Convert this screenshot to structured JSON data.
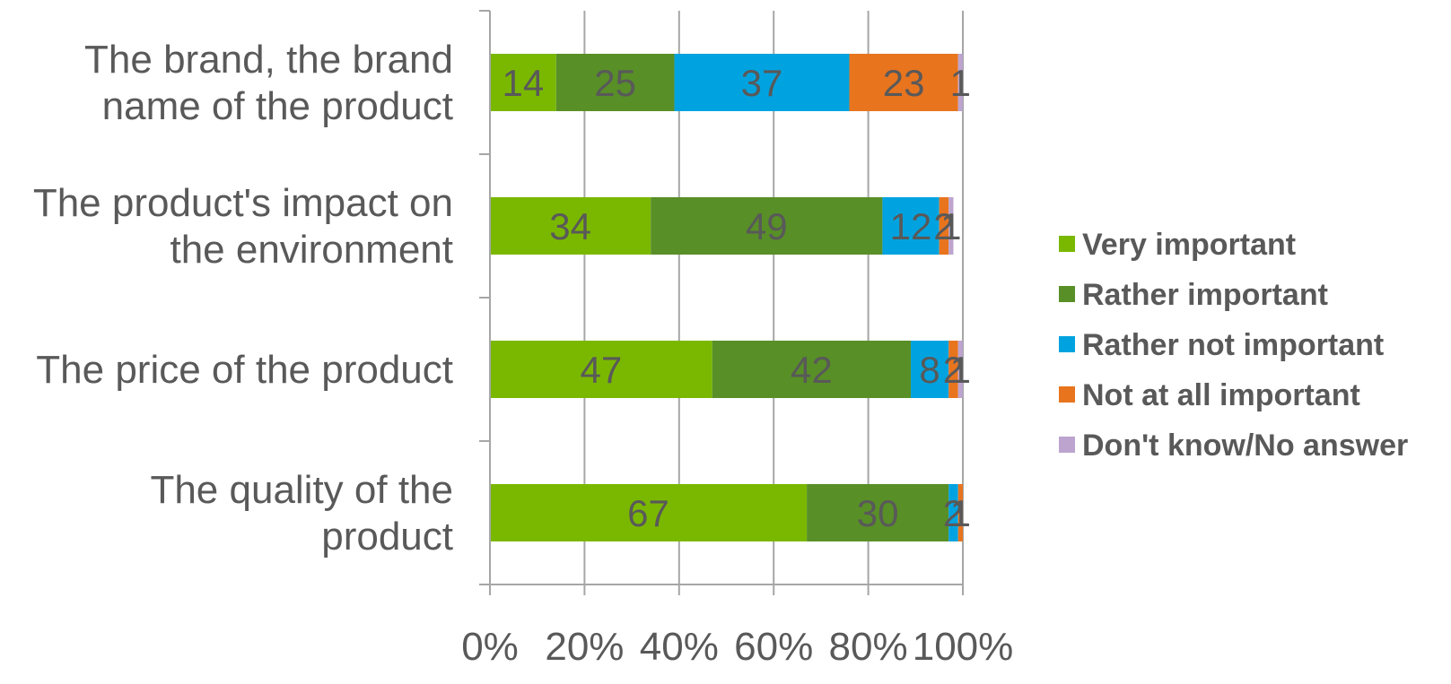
{
  "chart_data": {
    "type": "bar",
    "orientation": "horizontal",
    "stacked": "percent",
    "categories": [
      [
        "The brand, the brand",
        "name of the product"
      ],
      [
        "The product's impact on",
        "the environment"
      ],
      [
        "The price of the product"
      ],
      [
        "The quality of the",
        "product"
      ]
    ],
    "series": [
      {
        "name": "Very important",
        "color": "#7ab800",
        "values": [
          14,
          34,
          47,
          67
        ]
      },
      {
        "name": "Rather important",
        "color": "#588f27",
        "values": [
          25,
          49,
          42,
          30
        ]
      },
      {
        "name": "Rather not important",
        "color": "#00a3e0",
        "values": [
          37,
          12,
          8,
          2
        ]
      },
      {
        "name": "Not at all important",
        "color": "#e8741e",
        "values": [
          23,
          2,
          2,
          1
        ]
      },
      {
        "name": "Don't know/No answer",
        "color": "#bca4cf",
        "values": [
          1,
          1,
          1,
          0
        ]
      }
    ],
    "xlim": [
      0,
      100
    ],
    "x_ticks": [
      "0%",
      "20%",
      "40%",
      "60%",
      "80%",
      "100%"
    ],
    "grid": true,
    "legend_position": "right",
    "title": "",
    "xlabel": "",
    "ylabel": ""
  }
}
